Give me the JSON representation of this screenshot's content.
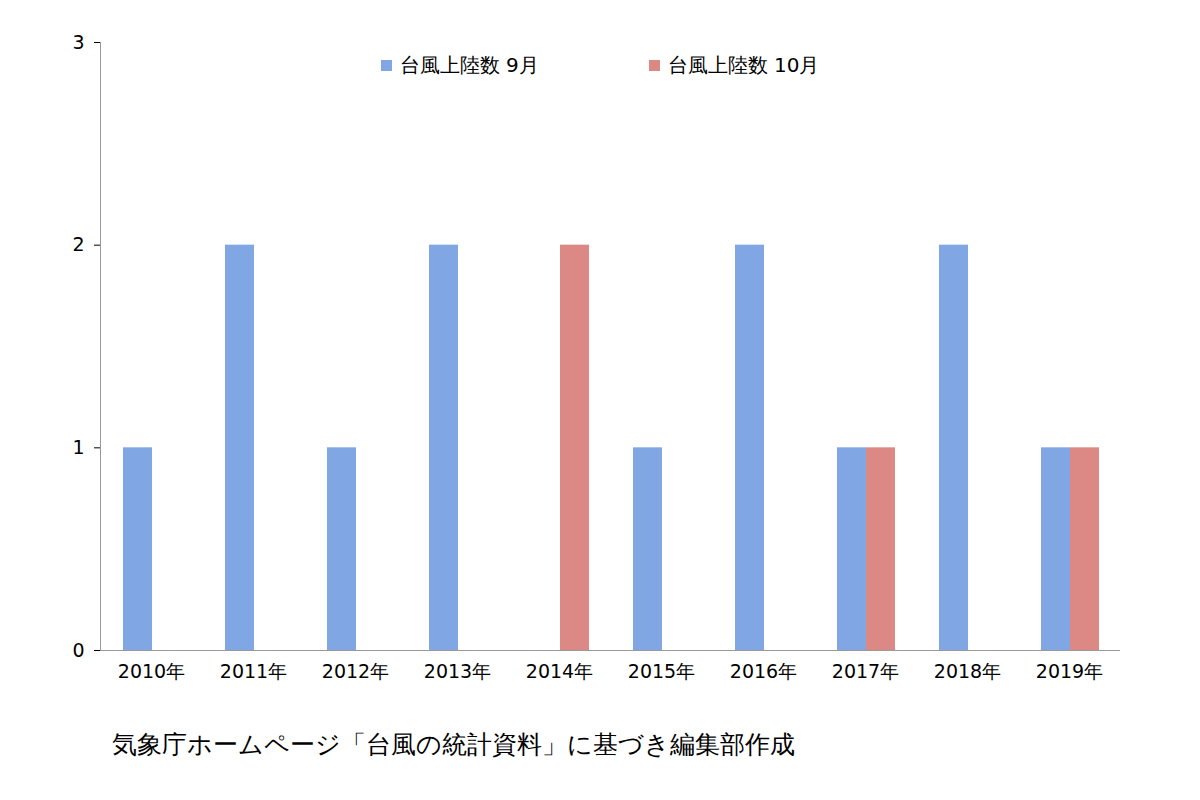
{
  "chart_data": {
    "type": "bar",
    "caption": "気象庁ホームページ「台風の統計資料」に基づき編集部作成",
    "categories": [
      "2010年",
      "2011年",
      "2012年",
      "2013年",
      "2014年",
      "2015年",
      "2016年",
      "2017年",
      "2018年",
      "2019年"
    ],
    "series": [
      {
        "name": "台風上陸数 9月",
        "color": "#80a6e4",
        "values": [
          1,
          2,
          1,
          2,
          0,
          1,
          2,
          1,
          2,
          1
        ]
      },
      {
        "name": "台風上陸数 10月",
        "color": "#dc8884",
        "values": [
          0,
          0,
          0,
          0,
          2,
          0,
          0,
          1,
          0,
          1
        ]
      }
    ],
    "ylim": [
      0,
      3
    ],
    "yticks": [
      0,
      1,
      2,
      3
    ],
    "grid": false,
    "legend": "top"
  }
}
